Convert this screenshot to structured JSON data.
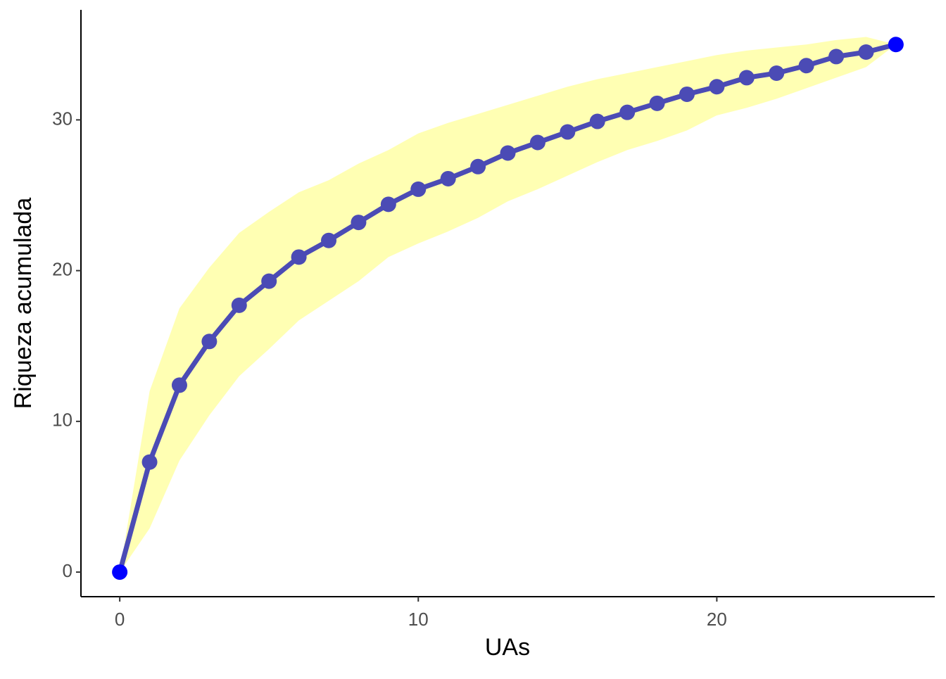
{
  "chart_data": {
    "type": "line",
    "x_label": "UAs",
    "y_label": "Riqueza acumulada",
    "x": [
      0,
      1,
      2,
      3,
      4,
      5,
      6,
      7,
      8,
      9,
      10,
      11,
      12,
      13,
      14,
      15,
      16,
      17,
      18,
      19,
      20,
      21,
      22,
      23,
      24,
      25,
      26
    ],
    "series": [
      {
        "color": "#4b4bb5",
        "endpoint_color": "#0000ff",
        "values": [
          0,
          7.3,
          12.4,
          15.3,
          17.7,
          19.3,
          20.9,
          22.0,
          23.2,
          24.4,
          25.4,
          26.1,
          26.9,
          27.8,
          28.5,
          29.2,
          29.9,
          30.5,
          31.1,
          31.7,
          32.2,
          32.8,
          33.1,
          33.6,
          34.2,
          34.5,
          35.0
        ]
      }
    ],
    "band": {
      "color": "#ffffb3",
      "upper": [
        0,
        12.0,
        17.5,
        20.2,
        22.5,
        23.9,
        25.2,
        26.0,
        27.1,
        28.0,
        29.1,
        29.8,
        30.4,
        31.0,
        31.6,
        32.2,
        32.7,
        33.1,
        33.5,
        33.9,
        34.3,
        34.6,
        34.8,
        35.0,
        35.3,
        35.5,
        35.0
      ],
      "lower": [
        0,
        2.9,
        7.4,
        10.4,
        13.0,
        14.8,
        16.7,
        18.0,
        19.3,
        20.9,
        21.8,
        22.6,
        23.5,
        24.6,
        25.4,
        26.3,
        27.2,
        28.0,
        28.6,
        29.3,
        30.3,
        30.8,
        31.4,
        32.1,
        32.8,
        33.5,
        35.0
      ]
    },
    "xlim": [
      -1.3,
      27.3
    ],
    "ylim": [
      -1.63,
      37.3
    ],
    "xticks": [
      0,
      10,
      20
    ],
    "yticks": [
      0,
      10,
      20,
      30
    ]
  }
}
